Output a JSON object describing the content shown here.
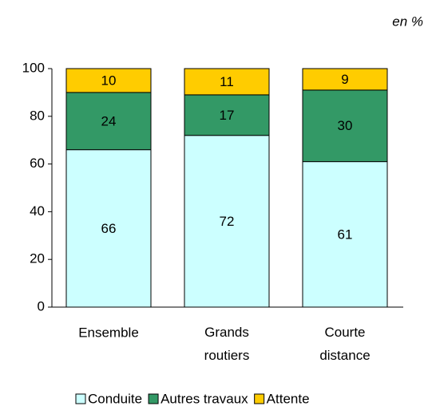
{
  "chart_data": {
    "type": "stacked_bar",
    "subtitle": "en %",
    "categories": [
      "Ensemble",
      "Grands routiers",
      "Courte distance"
    ],
    "series": [
      {
        "name": "Conduite",
        "color": "#ccffff",
        "values": [
          66,
          72,
          61
        ]
      },
      {
        "name": "Autres travaux",
        "color": "#339966",
        "values": [
          24,
          17,
          30
        ]
      },
      {
        "name": "Attente",
        "color": "#ffcc00",
        "values": [
          10,
          11,
          9
        ]
      }
    ],
    "ylim": [
      0,
      100
    ],
    "yticks": [
      0,
      20,
      40,
      60,
      80,
      100
    ],
    "legend": "bottom"
  }
}
